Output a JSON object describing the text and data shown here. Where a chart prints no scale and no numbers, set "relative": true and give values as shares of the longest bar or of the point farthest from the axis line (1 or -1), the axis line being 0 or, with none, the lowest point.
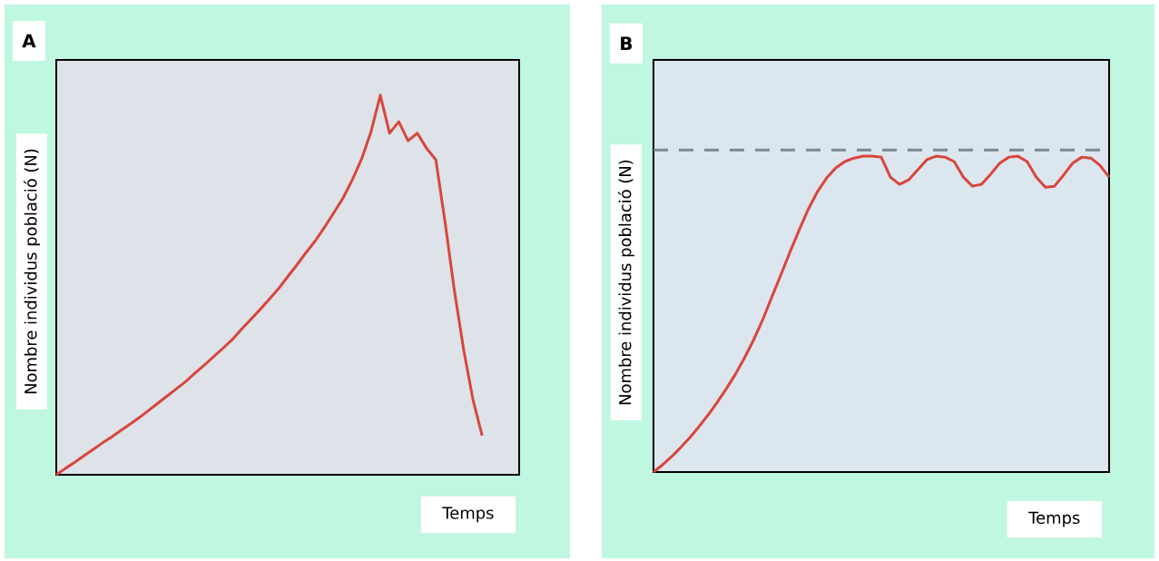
{
  "chart_data": [
    {
      "type": "line",
      "title": "A",
      "xlabel": "Temps",
      "ylabel": "Nombre individus població (N)",
      "relative": true,
      "color": "#d9453c",
      "categories": [
        null,
        null,
        null,
        null,
        null,
        null,
        null,
        null,
        null,
        null,
        null,
        null,
        null,
        null,
        null,
        null,
        null,
        null,
        null,
        null,
        null,
        null,
        null,
        null,
        null,
        null,
        null,
        null,
        null,
        null,
        null,
        null,
        null,
        null,
        null,
        null,
        null,
        null,
        null,
        null,
        null,
        null,
        null,
        null,
        null,
        null,
        null,
        null,
        null,
        null,
        null
      ],
      "values": [
        0,
        0.017,
        0.033,
        0.05,
        0.067,
        0.084,
        0.1,
        0.117,
        0.134,
        0.151,
        0.17,
        0.189,
        0.208,
        0.227,
        0.246,
        0.268,
        0.289,
        0.311,
        0.333,
        0.356,
        0.383,
        0.409,
        0.435,
        0.462,
        0.49,
        0.522,
        0.553,
        0.586,
        0.617,
        0.653,
        0.691,
        0.73,
        0.778,
        0.833,
        0.904,
        1.0,
        0.9,
        0.93,
        0.88,
        0.9,
        0.86,
        0.83,
        0.665,
        0.486,
        0.33,
        0.199,
        0.103,
        null,
        null,
        null,
        null
      ]
    },
    {
      "type": "line",
      "title": "B",
      "xlabel": "Temps",
      "ylabel": "Nombre individus població (N)",
      "relative": true,
      "color": "#d9453c",
      "categories": [
        null,
        null,
        null,
        null,
        null,
        null,
        null,
        null,
        null,
        null,
        null,
        null,
        null,
        null,
        null,
        null,
        null,
        null,
        null,
        null,
        null,
        null,
        null,
        null,
        null,
        null,
        null,
        null,
        null,
        null,
        null,
        null,
        null,
        null,
        null,
        null,
        null,
        null,
        null,
        null,
        null,
        null,
        null,
        null,
        null,
        null,
        null,
        null,
        null,
        null,
        null
      ],
      "values": [
        0,
        0.023,
        0.049,
        0.078,
        0.109,
        0.144,
        0.181,
        0.221,
        0.264,
        0.31,
        0.362,
        0.419,
        0.483,
        0.555,
        0.626,
        0.698,
        0.767,
        0.833,
        0.888,
        0.931,
        0.963,
        0.983,
        0.994,
        1.0,
        1.0,
        0.997,
        0.934,
        0.911,
        0.925,
        0.957,
        0.989,
        1.0,
        0.997,
        0.983,
        0.934,
        0.905,
        0.911,
        0.943,
        0.978,
        0.997,
        1.0,
        0.983,
        0.934,
        0.902,
        0.905,
        0.94,
        0.978,
        0.997,
        0.994,
        0.971,
        0.934
      ],
      "ref_lines": [
        {
          "axis": "y",
          "value": 1.02,
          "color": "#7a8794",
          "line_style": "dashed"
        }
      ]
    }
  ]
}
